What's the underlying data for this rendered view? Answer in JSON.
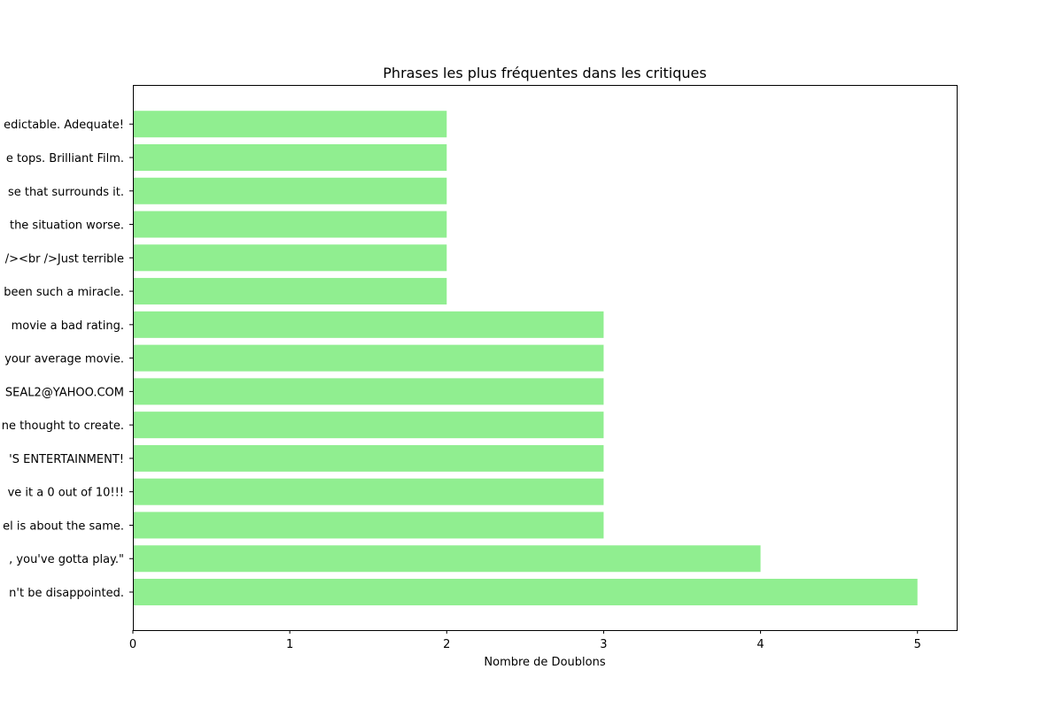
{
  "chart_data": {
    "type": "bar",
    "orientation": "horizontal",
    "title": "Phrases les plus fréquentes dans les critiques",
    "xlabel": "Nombre de Doublons",
    "ylabel": "",
    "xlim": [
      0,
      5.25
    ],
    "xticks": [
      "0",
      "1",
      "2",
      "3",
      "4",
      "5"
    ],
    "grid": false,
    "bar_color": "#90ee90",
    "categories": [
      "n't be disappointed.",
      ", you've gotta play.\"",
      "el is about the same.",
      "ve it a 0 out of 10!!!",
      "'S ENTERTAINMENT!",
      "ne thought to create.",
      "SEAL2@YAHOO.COM",
      "your average movie.",
      " movie a bad rating.",
      "been such a miracle.",
      "/><br />Just terrible",
      " the situation worse.",
      "se that surrounds it.",
      "e tops. Brilliant Film.",
      "edictable. Adequate!"
    ],
    "values": [
      5,
      4,
      3,
      3,
      3,
      3,
      3,
      3,
      3,
      2,
      2,
      2,
      2,
      2,
      2
    ]
  }
}
